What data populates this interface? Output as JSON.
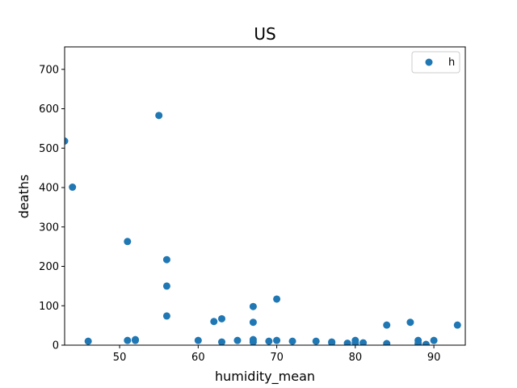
{
  "chart_data": {
    "type": "scatter",
    "title": "US",
    "xlabel": "humidity_mean",
    "ylabel": "deaths",
    "xlim": [
      43,
      94
    ],
    "ylim": [
      0,
      757
    ],
    "xticks": [
      50,
      60,
      70,
      80,
      90
    ],
    "yticks": [
      0,
      100,
      200,
      300,
      400,
      500,
      600,
      700
    ],
    "legend": {
      "placement": "top-right",
      "entries": [
        "h"
      ]
    },
    "marker_color": "#1f77b4",
    "series": [
      {
        "name": "h",
        "points": [
          [
            43,
            518
          ],
          [
            44,
            401
          ],
          [
            46,
            10
          ],
          [
            51,
            263
          ],
          [
            51,
            12
          ],
          [
            52,
            14
          ],
          [
            52,
            12
          ],
          [
            55,
            583
          ],
          [
            56,
            217
          ],
          [
            56,
            150
          ],
          [
            56,
            74
          ],
          [
            60,
            12
          ],
          [
            62,
            60
          ],
          [
            63,
            67
          ],
          [
            63,
            8
          ],
          [
            65,
            12
          ],
          [
            67,
            98
          ],
          [
            67,
            58
          ],
          [
            67,
            14
          ],
          [
            67,
            8
          ],
          [
            69,
            10
          ],
          [
            70,
            117
          ],
          [
            70,
            12
          ],
          [
            72,
            10
          ],
          [
            75,
            10
          ],
          [
            77,
            8
          ],
          [
            77,
            6
          ],
          [
            79,
            5
          ],
          [
            80,
            12
          ],
          [
            80,
            5
          ],
          [
            81,
            6
          ],
          [
            84,
            51
          ],
          [
            84,
            4
          ],
          [
            87,
            58
          ],
          [
            88,
            12
          ],
          [
            88,
            4
          ],
          [
            89,
            2
          ],
          [
            90,
            12
          ],
          [
            93,
            51
          ]
        ]
      }
    ]
  }
}
